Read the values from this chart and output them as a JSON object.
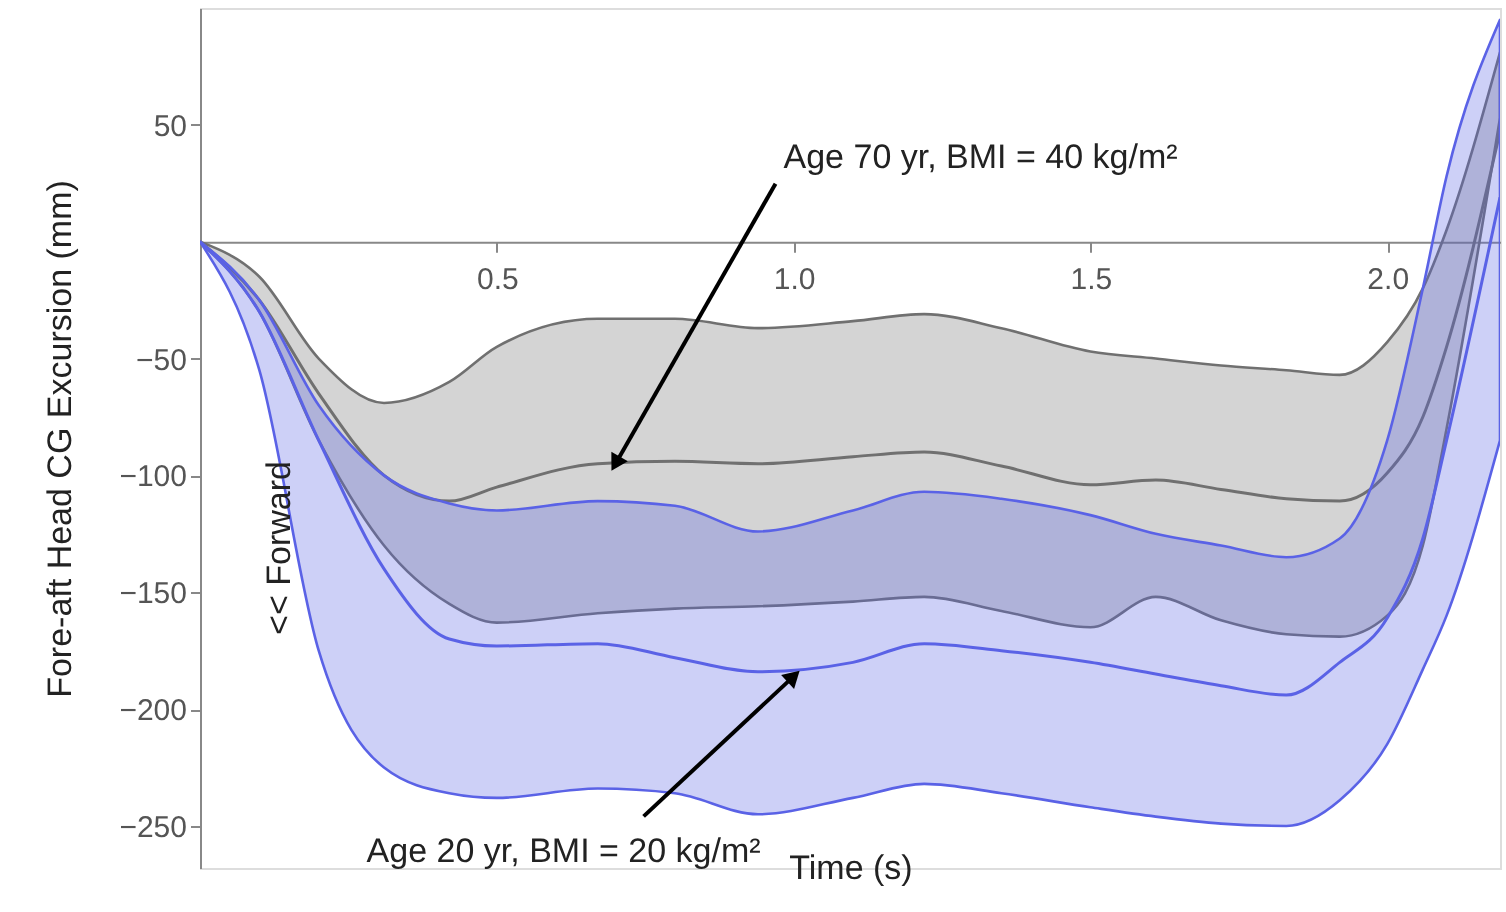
{
  "chart_data": {
    "type": "line",
    "xlabel": "Time (s)",
    "ylabel": "Fore-aft Head CG Excursion (mm)",
    "x": [
      0,
      0.1,
      0.2,
      0.31,
      0.42,
      0.5,
      0.67,
      0.8,
      0.94,
      1.1,
      1.22,
      1.35,
      1.5,
      1.61,
      1.72,
      1.83,
      1.92,
      2.0,
      2.06,
      2.1,
      2.19
    ],
    "series": [
      {
        "color": "#707070",
        "values": [
          0,
          -25,
          -65,
          -100,
          -111,
          -105,
          -95,
          -94,
          -95,
          -92,
          -90,
          -96,
          -104,
          -102,
          -106,
          -110,
          -111,
          -99,
          -75,
          -45,
          47
        ],
        "lower": [
          0,
          -30,
          -85,
          -130,
          -155,
          -163,
          -159,
          -157,
          -156,
          -154,
          -152,
          -158,
          -165,
          -152,
          -162,
          -168,
          -169,
          -160,
          -130,
          -80,
          53
        ],
        "upper": [
          0,
          -15,
          -50,
          -69,
          -60,
          -45,
          -33,
          -33,
          -37,
          -34,
          -31,
          -37,
          -47,
          -50,
          -53,
          -55,
          -57,
          -43,
          -20,
          5,
          81
        ]
      },
      {
        "color": "#5a62e6",
        "values": [
          0,
          -30,
          -85,
          -140,
          -170,
          -173,
          -172,
          -178,
          -184,
          -180,
          -172,
          -175,
          -180,
          -185,
          -190,
          -194,
          -180,
          -161,
          -127,
          -85,
          19
        ],
        "lower": [
          0,
          -55,
          -175,
          -225,
          -236,
          -238,
          -234,
          -236,
          -245,
          -238,
          -232,
          -236,
          -242,
          -246,
          -249,
          -250,
          -239,
          -215,
          -183,
          -160,
          -85
        ],
        "upper": [
          0,
          -25,
          -70,
          -100,
          -112,
          -115,
          -111,
          -113,
          -124,
          -115,
          -107,
          -110,
          -117,
          -125,
          -130,
          -135,
          -127,
          -85,
          -20,
          28,
          95
        ]
      }
    ],
    "xlim": [
      0,
      2.19
    ],
    "ylim": [
      -268,
      100
    ],
    "xticks": [
      0.5,
      {
        "value": 1,
        "label": "1.0"
      },
      1.5,
      {
        "value": 2,
        "label": "2.0"
      }
    ],
    "yticks": [
      -250,
      -200,
      -150,
      -100,
      -50,
      50
    ],
    "grid": false,
    "marker": "none",
    "line_style": "solid",
    "annotations": [
      {
        "text": "Age 70 yr, BMI = 40 kg/m²",
        "x": 0.7,
        "y": -95
      },
      {
        "text": "Age 20 yr, BMI = 20 kg/m²",
        "x": 1.0,
        "y": -186
      },
      "<< Forward"
    ]
  }
}
